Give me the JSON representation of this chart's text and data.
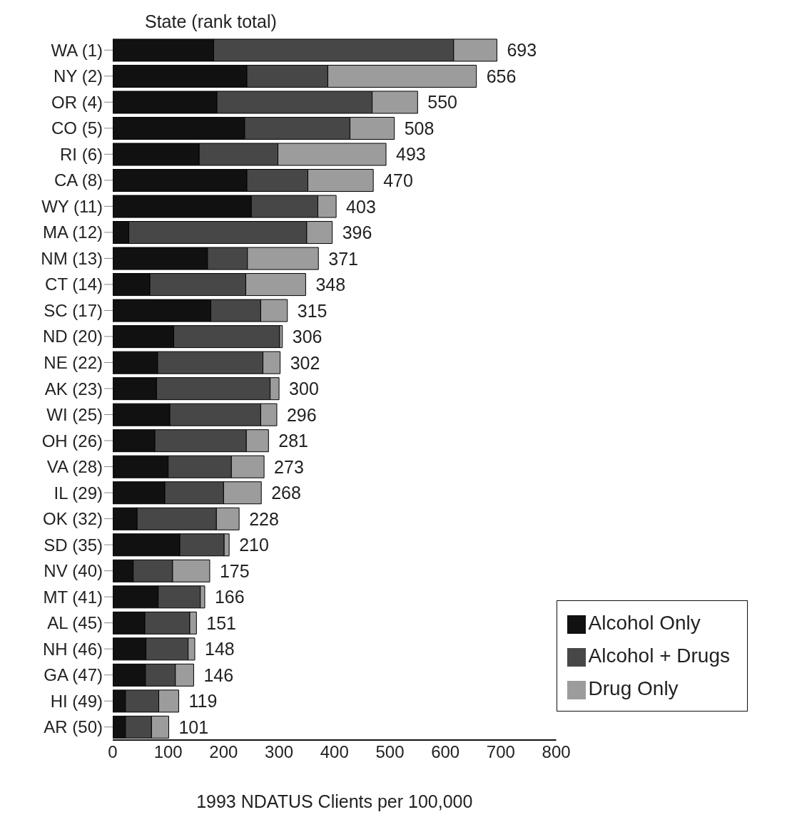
{
  "chart_data": {
    "type": "bar",
    "orientation": "horizontal",
    "stacked": true,
    "ylabel": "State (rank total)",
    "xlabel": "1993 NDATUS Clients per 100,000",
    "categories": [
      "WA (1)",
      "NY (2)",
      "OR (4)",
      "CO (5)",
      "RI (6)",
      "CA (8)",
      "WY (11)",
      "MA (12)",
      "NM (13)",
      "CT (14)",
      "SC (17)",
      "ND (20)",
      "NE (22)",
      "AK (23)",
      "WI (25)",
      "OH (26)",
      "VA (28)",
      "IL (29)",
      "OK (32)",
      "SD (35)",
      "NV (40)",
      "MT (41)",
      "AL (45)",
      "NH (46)",
      "GA (47)",
      "HI (49)",
      "AR (50)"
    ],
    "series": [
      {
        "name": "Alcohol Only",
        "color": "#111111",
        "values": [
          182,
          242,
          188,
          238,
          156,
          242,
          250,
          29,
          171,
          67,
          177,
          110,
          81,
          79,
          103,
          76,
          100,
          94,
          44,
          121,
          37,
          82,
          58,
          60,
          59,
          23,
          23
        ]
      },
      {
        "name": "Alcohol + Drugs",
        "color": "#474747",
        "values": [
          433,
          146,
          280,
          190,
          142,
          110,
          120,
          321,
          72,
          173,
          90,
          191,
          190,
          205,
          164,
          165,
          114,
          106,
          143,
          80,
          71,
          76,
          81,
          76,
          54,
          60,
          47
        ]
      },
      {
        "name": "Drug Only",
        "color": "#9c9c9c",
        "values": [
          78,
          268,
          82,
          80,
          195,
          118,
          33,
          46,
          128,
          108,
          48,
          5,
          31,
          16,
          29,
          40,
          59,
          68,
          41,
          9,
          67,
          8,
          12,
          12,
          33,
          36,
          31
        ]
      }
    ],
    "totals": [
      "693",
      "656",
      "550",
      "508",
      "493",
      "470",
      "403",
      "396",
      "371",
      "348",
      "315",
      "306",
      "302",
      "300",
      "296",
      "281",
      "273",
      "268",
      "228",
      "210",
      "175",
      "166",
      "151",
      "148",
      "146",
      "119",
      "101"
    ],
    "xlim": [
      0,
      800
    ],
    "xticks": [
      0,
      100,
      200,
      300,
      400,
      500,
      600,
      700,
      800
    ],
    "grid": false,
    "legend": "bottom right"
  }
}
